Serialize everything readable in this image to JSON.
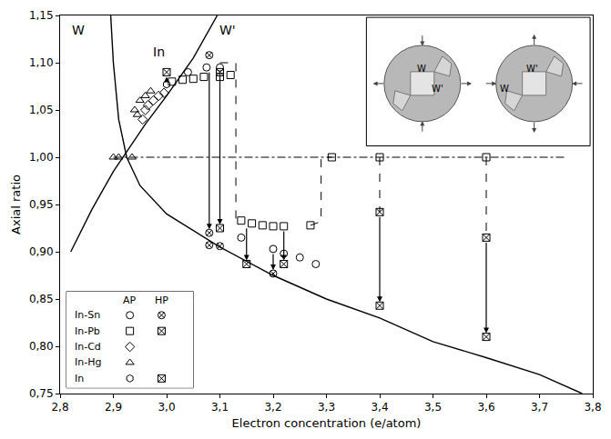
{
  "chart_data": {
    "type": "scatter",
    "xlabel": "Electron concentration (e/atom)",
    "ylabel": "Axial ratio",
    "xlim": [
      2.8,
      3.8
    ],
    "ylim": [
      0.75,
      1.15
    ],
    "xticks": [
      {
        "value": 2.8,
        "label": "2,8"
      },
      {
        "value": 2.9,
        "label": "2,9"
      },
      {
        "value": 3.0,
        "label": "3,0"
      },
      {
        "value": 3.1,
        "label": "3,1"
      },
      {
        "value": 3.2,
        "label": "3,2"
      },
      {
        "value": 3.3,
        "label": "3,3"
      },
      {
        "value": 3.4,
        "label": "3,4"
      },
      {
        "value": 3.5,
        "label": "3,5"
      },
      {
        "value": 3.6,
        "label": "3,6"
      },
      {
        "value": 3.7,
        "label": "3,7"
      },
      {
        "value": 3.8,
        "label": "3,8"
      }
    ],
    "yticks": [
      {
        "value": 0.75,
        "label": "0,75"
      },
      {
        "value": 0.8,
        "label": "0,80"
      },
      {
        "value": 0.85,
        "label": "0,85"
      },
      {
        "value": 0.9,
        "label": "0,90"
      },
      {
        "value": 0.95,
        "label": "0,95"
      },
      {
        "value": 1.0,
        "label": "1,00"
      },
      {
        "value": 1.05,
        "label": "1,05"
      },
      {
        "value": 1.1,
        "label": "1,10"
      },
      {
        "value": 1.15,
        "label": "1,15"
      }
    ],
    "grid": false,
    "legend": "lower left",
    "legend_columns": [
      "AP",
      "HP"
    ],
    "series": [
      {
        "name": "In-Sn",
        "group": "AP",
        "marker": "circle-open",
        "color": "#000000",
        "x": [
          3.04,
          3.075,
          3.1,
          3.14,
          3.2,
          3.22,
          3.25,
          3.28
        ],
        "values": [
          1.09,
          1.095,
          1.095,
          0.915,
          0.903,
          0.898,
          0.894,
          0.887
        ]
      },
      {
        "name": "In-Sn",
        "group": "HP",
        "marker": "circle-x-open",
        "color": "#000000",
        "x": [
          3.08,
          3.08,
          3.08,
          3.1,
          3.2
        ],
        "values": [
          1.108,
          0.92,
          0.907,
          0.906,
          0.877
        ]
      },
      {
        "name": "In-Pb",
        "group": "AP",
        "marker": "square-open",
        "color": "#000000",
        "x": [
          3.01,
          3.03,
          3.05,
          3.07,
          3.1,
          3.12,
          3.14,
          3.16,
          3.18,
          3.2,
          3.22,
          3.27,
          3.31,
          3.4,
          3.6
        ],
        "values": [
          1.08,
          1.082,
          1.083,
          1.085,
          1.085,
          1.087,
          0.933,
          0.93,
          0.928,
          0.927,
          0.927,
          0.928,
          1.0,
          1.0,
          1.0
        ]
      },
      {
        "name": "In-Pb",
        "group": "HP",
        "marker": "square-x-open",
        "color": "#000000",
        "x": [
          3.1,
          3.1,
          3.15,
          3.22,
          3.4,
          3.4,
          3.6,
          3.6
        ],
        "values": [
          1.09,
          0.925,
          0.887,
          0.887,
          0.942,
          0.843,
          0.915,
          0.81
        ]
      },
      {
        "name": "In-Cd",
        "group": "AP",
        "marker": "diamond-open",
        "color": "#000000",
        "x": [
          2.955,
          2.96,
          2.965,
          2.975,
          2.985,
          2.995
        ],
        "values": [
          1.04,
          1.05,
          1.055,
          1.06,
          1.065,
          1.068
        ]
      },
      {
        "name": "In-Hg",
        "group": "AP",
        "marker": "triangle-up-open",
        "color": "#000000",
        "x": [
          2.9,
          2.91,
          2.935,
          2.94,
          2.945,
          2.95,
          2.96,
          2.97
        ],
        "values": [
          1.0,
          1.0,
          1.0,
          1.05,
          1.045,
          1.06,
          1.065,
          1.07
        ]
      },
      {
        "name": "In",
        "group": "AP",
        "marker": "hexagon-open",
        "color": "#000000",
        "x": [
          3.0
        ],
        "values": [
          1.077
        ]
      },
      {
        "name": "In",
        "group": "HP",
        "marker": "square-x-open",
        "color": "#000000",
        "x": [
          3.0
        ],
        "values": [
          1.09
        ]
      }
    ],
    "curves": [
      {
        "label": "W",
        "label_x": 2.835,
        "label_y": 1.135,
        "color": "#000000",
        "line_style": "solid",
        "x": [
          2.895,
          2.9,
          2.91,
          2.925,
          2.95,
          3.0,
          3.1,
          3.2,
          3.3,
          3.4,
          3.5,
          3.6,
          3.7,
          3.78
        ],
        "values": [
          1.15,
          1.1,
          1.04,
          1.0,
          0.97,
          0.94,
          0.905,
          0.875,
          0.85,
          0.83,
          0.805,
          0.788,
          0.77,
          0.75
        ]
      },
      {
        "label": "W'",
        "label_x": 3.115,
        "label_y": 1.135,
        "color": "#000000",
        "line_style": "solid",
        "x": [
          2.82,
          2.86,
          2.9,
          2.93,
          2.96,
          3.0,
          3.05,
          3.095
        ],
        "values": [
          0.9,
          0.945,
          0.985,
          1.01,
          1.035,
          1.065,
          1.105,
          1.15
        ]
      }
    ],
    "reference_line": {
      "x": [
        2.9,
        3.75
      ],
      "values": [
        1.0,
        1.0
      ],
      "color": "#000000",
      "line_style": "dashdot"
    },
    "connectors": [
      {
        "x": [
          3.1,
          3.13,
          3.13
        ],
        "values": [
          1.1,
          1.1,
          0.933
        ],
        "color": "#000000",
        "line_style": "dash"
      },
      {
        "x": [
          3.27,
          3.29,
          3.29,
          3.31
        ],
        "values": [
          0.928,
          0.932,
          1.0,
          1.0
        ],
        "color": "#000000",
        "line_style": "dash"
      },
      {
        "x": [
          3.4,
          3.4
        ],
        "values": [
          1.0,
          0.942
        ],
        "color": "#000000",
        "line_style": "dash"
      },
      {
        "x": [
          3.6,
          3.6
        ],
        "values": [
          1.0,
          0.915
        ],
        "color": "#000000",
        "line_style": "dash"
      }
    ],
    "transitions": [
      {
        "x": 3.0,
        "from": 1.077,
        "to": 1.089
      },
      {
        "x": 3.08,
        "from": 1.095,
        "to": 0.92
      },
      {
        "x": 3.1,
        "from": 1.095,
        "to": 0.925
      },
      {
        "x": 3.15,
        "from": 0.93,
        "to": 0.887
      },
      {
        "x": 3.2,
        "from": 0.903,
        "to": 0.877
      },
      {
        "x": 3.22,
        "from": 0.927,
        "to": 0.887
      },
      {
        "x": 3.4,
        "from": 0.942,
        "to": 0.843
      },
      {
        "x": 3.6,
        "from": 0.915,
        "to": 0.81
      }
    ],
    "annotations": [
      {
        "text": "In",
        "x": 2.985,
        "y": 1.102
      }
    ],
    "inset": {
      "panels": [
        {
          "labels": [
            "W",
            "W'"
          ]
        },
        {
          "labels": [
            "W'",
            "W"
          ]
        }
      ]
    }
  }
}
